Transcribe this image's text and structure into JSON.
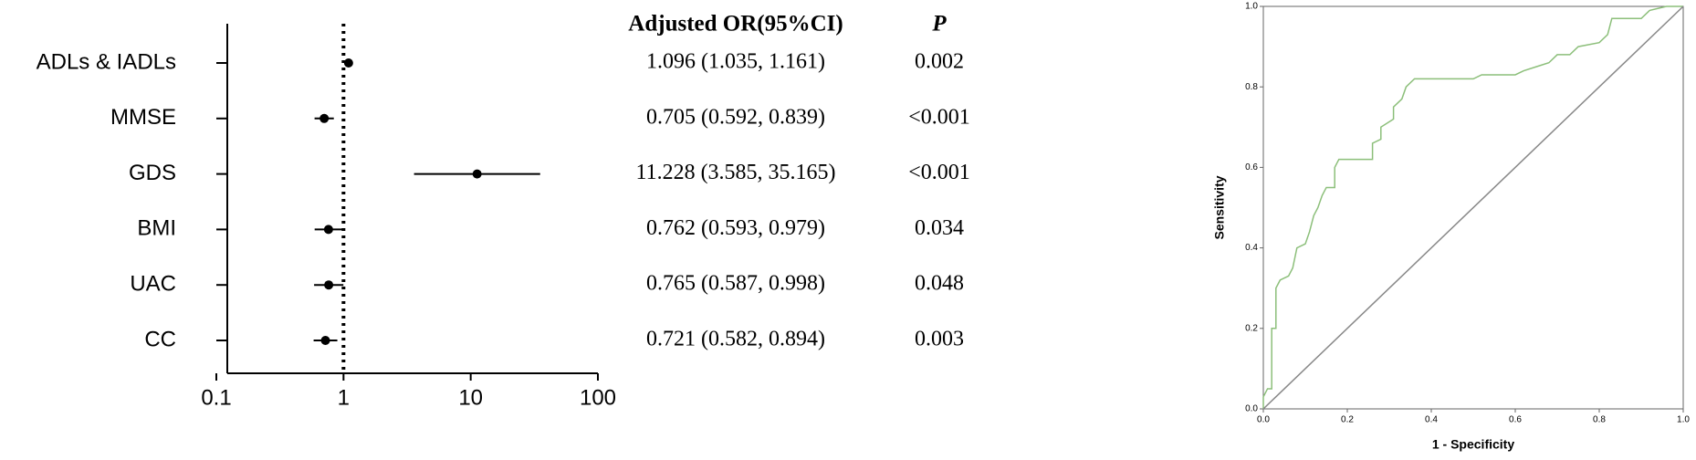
{
  "chart_data": [
    {
      "type": "forest",
      "column_headers": [
        "Adjusted OR(95%CI)",
        "P"
      ],
      "categories": [
        "ADLs & IADLs",
        "MMSE",
        "GDS",
        "BMI",
        "UAC",
        "CC"
      ],
      "values": [
        1.096,
        0.705,
        11.228,
        0.762,
        0.765,
        0.721
      ],
      "lower": [
        1.035,
        0.592,
        3.585,
        0.593,
        0.587,
        0.582
      ],
      "upper": [
        1.161,
        0.839,
        35.165,
        0.979,
        0.998,
        0.894
      ],
      "value_labels": [
        "1.096 (1.035, 1.161)",
        "0.705 (0.592, 0.839)",
        "11.228 (3.585, 35.165)",
        "0.762 (0.593, 0.979)",
        "0.765 (0.587, 0.998)",
        "0.721 (0.582, 0.894)"
      ],
      "p_labels": [
        "0.002",
        "<0.001",
        "<0.001",
        "0.034",
        "0.048",
        "0.003"
      ],
      "xlim": [
        0.1,
        100
      ],
      "xticks": [
        0.1,
        1,
        10,
        100
      ],
      "log_x": true,
      "reference": 1,
      "color": "#000000"
    },
    {
      "type": "line",
      "xlabel": "1 - Specificity",
      "ylabel": "Sensitivity",
      "xlim": [
        0,
        1
      ],
      "ylim": [
        0,
        1
      ],
      "xticks": [
        {
          "value": 0,
          "label": "0.0"
        },
        0.2,
        0.4,
        0.6,
        0.8,
        {
          "value": 1,
          "label": "1.0"
        }
      ],
      "yticks": [
        {
          "value": 0,
          "label": "0.0"
        },
        0.2,
        0.4,
        0.6,
        0.8,
        {
          "value": 1,
          "label": "1.0"
        }
      ],
      "series": [
        {
          "color": "#8cbf7a",
          "x": [
            0,
            0,
            0.01,
            0.02,
            0.02,
            0.03,
            0.03,
            0.04,
            0.06,
            0.07,
            0.08,
            0.1,
            0.11,
            0.12,
            0.13,
            0.14,
            0.15,
            0.17,
            0.17,
            0.18,
            0.26,
            0.26,
            0.28,
            0.28,
            0.31,
            0.31,
            0.33,
            0.34,
            0.36,
            0.5,
            0.52,
            0.6,
            0.62,
            0.65,
            0.68,
            0.7,
            0.73,
            0.75,
            0.8,
            0.82,
            0.83,
            0.9,
            0.92,
            0.96,
            1
          ],
          "values": [
            0,
            0.03,
            0.05,
            0.05,
            0.2,
            0.2,
            0.3,
            0.32,
            0.33,
            0.35,
            0.4,
            0.41,
            0.44,
            0.48,
            0.5,
            0.53,
            0.55,
            0.55,
            0.6,
            0.62,
            0.62,
            0.66,
            0.67,
            0.7,
            0.72,
            0.75,
            0.77,
            0.8,
            0.82,
            0.82,
            0.83,
            0.83,
            0.84,
            0.85,
            0.86,
            0.88,
            0.88,
            0.9,
            0.91,
            0.93,
            0.97,
            0.97,
            0.99,
            1,
            1
          ]
        },
        {
          "color": "#888888",
          "x": [
            0,
            1
          ],
          "values": [
            0,
            1
          ]
        }
      ]
    }
  ]
}
